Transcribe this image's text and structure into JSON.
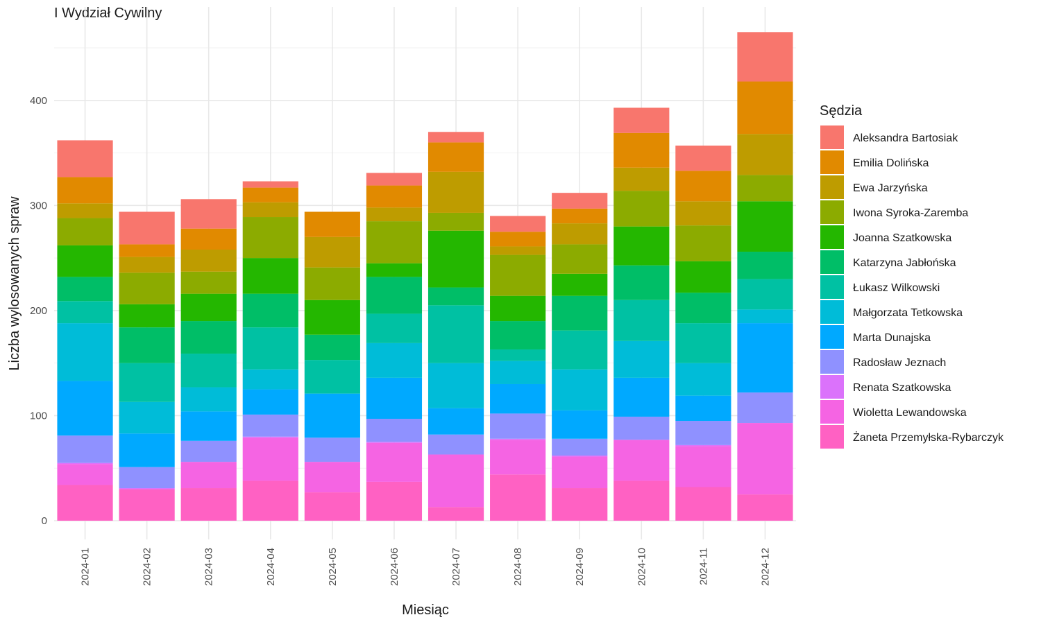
{
  "chart_data": {
    "type": "bar",
    "stacked": true,
    "title": "I Wydział Cywilny",
    "xlabel": "Miesiąc",
    "ylabel": "Liczba wylosowanych spraw",
    "ylim": [
      0,
      470
    ],
    "yticks": [
      0,
      100,
      200,
      300,
      400
    ],
    "grid": true,
    "legend_title": "Sędzia",
    "legend_position": "right",
    "categories": [
      "2024-01",
      "2024-02",
      "2024-03",
      "2024-04",
      "2024-05",
      "2024-06",
      "2024-07",
      "2024-08",
      "2024-09",
      "2024-10",
      "2024-11",
      "2024-12"
    ],
    "series": [
      {
        "name": "Żaneta Przemyłska-Rybarczyk",
        "color": "#FF61C3",
        "values": [
          34,
          30,
          31,
          38,
          27,
          37,
          13,
          44,
          31,
          38,
          32,
          25
        ]
      },
      {
        "name": "Wioletta Lewandowska",
        "color": "#F564E3",
        "values": [
          20,
          0,
          25,
          41,
          29,
          37,
          50,
          33,
          30,
          39,
          39,
          68
        ]
      },
      {
        "name": "Renata Szatkowska",
        "color": "#DB72FB",
        "values": [
          1,
          1,
          0,
          1,
          0,
          1,
          0,
          1,
          1,
          0,
          1,
          0
        ]
      },
      {
        "name": "Radosław Jeznach",
        "color": "#8F91FF",
        "values": [
          26,
          20,
          20,
          21,
          23,
          22,
          19,
          24,
          16,
          22,
          23,
          29
        ]
      },
      {
        "name": "Marta Dunajska",
        "color": "#00A9FF",
        "values": [
          52,
          32,
          28,
          24,
          42,
          39,
          25,
          28,
          27,
          37,
          24,
          66
        ]
      },
      {
        "name": "Małgorzata Tetkowska",
        "color": "#00BCD8",
        "values": [
          55,
          30,
          23,
          19,
          0,
          33,
          43,
          22,
          39,
          35,
          31,
          13
        ]
      },
      {
        "name": "Łukasz Wilkowski",
        "color": "#00C1A3",
        "values": [
          21,
          37,
          32,
          40,
          32,
          28,
          55,
          11,
          37,
          39,
          38,
          29
        ]
      },
      {
        "name": "Katarzyna Jabłońska",
        "color": "#00BE67",
        "values": [
          23,
          34,
          31,
          32,
          24,
          35,
          17,
          27,
          33,
          33,
          29,
          26
        ]
      },
      {
        "name": "Joanna Szatkowska",
        "color": "#24B700",
        "values": [
          30,
          22,
          26,
          34,
          33,
          13,
          54,
          24,
          21,
          37,
          30,
          48
        ]
      },
      {
        "name": "Iwona Syroka-Zaremba",
        "color": "#8CAB00",
        "values": [
          26,
          30,
          21,
          39,
          31,
          40,
          17,
          39,
          28,
          34,
          34,
          25
        ]
      },
      {
        "name": "Ewa Jarzyńska",
        "color": "#BE9C00",
        "values": [
          14,
          15,
          21,
          14,
          29,
          13,
          39,
          8,
          20,
          22,
          23,
          39
        ]
      },
      {
        "name": "Emilia Dolińska",
        "color": "#E18A00",
        "values": [
          25,
          12,
          20,
          14,
          24,
          21,
          28,
          14,
          14,
          33,
          29,
          50
        ]
      },
      {
        "name": "Aleksandra Bartosiak",
        "color": "#F8766D",
        "values": [
          35,
          31,
          28,
          6,
          0,
          12,
          10,
          15,
          15,
          24,
          24,
          47
        ]
      }
    ],
    "legend_order": [
      "Aleksandra Bartosiak",
      "Emilia Dolińska",
      "Ewa Jarzyńska",
      "Iwona Syroka-Zaremba",
      "Joanna Szatkowska",
      "Katarzyna Jabłońska",
      "Łukasz Wilkowski",
      "Małgorzata Tetkowska",
      "Marta Dunajska",
      "Radosław Jeznach",
      "Renata Szatkowska",
      "Wioletta Lewandowska",
      "Żaneta Przemyłska-Rybarczyk"
    ]
  }
}
